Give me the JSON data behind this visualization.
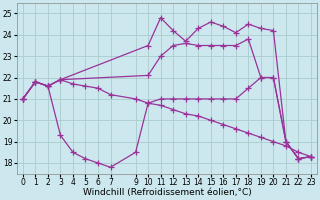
{
  "background_color": "#cce8ee",
  "grid_color": "#aacccc",
  "line_color": "#993399",
  "line_width": 0.9,
  "marker": "+",
  "marker_size": 4,
  "marker_lw": 0.9,
  "xlabel": "Windchill (Refroidissement éolien,°C)",
  "xlabel_fontsize": 6.5,
  "tick_fontsize": 5.5,
  "xlim": [
    -0.5,
    23.5
  ],
  "ylim": [
    17.5,
    25.5
  ],
  "yticks": [
    18,
    19,
    20,
    21,
    22,
    23,
    24,
    25
  ],
  "xticks": [
    0,
    1,
    2,
    3,
    4,
    5,
    6,
    7,
    9,
    10,
    11,
    12,
    13,
    14,
    15,
    16,
    17,
    18,
    19,
    20,
    21,
    22,
    23
  ],
  "series": [
    {
      "x": [
        0,
        1,
        2,
        3,
        10,
        11,
        12,
        13,
        14,
        15,
        16,
        17,
        18,
        19,
        20,
        21,
        22,
        23
      ],
      "y": [
        21.0,
        21.8,
        21.6,
        21.9,
        23.5,
        24.8,
        24.2,
        23.7,
        24.3,
        24.6,
        24.4,
        24.1,
        24.5,
        24.3,
        24.2,
        19.0,
        18.2,
        18.3
      ]
    },
    {
      "x": [
        0,
        1,
        2,
        3,
        10,
        11,
        12,
        13,
        14,
        15,
        16,
        17,
        18,
        19,
        20,
        21,
        22,
        23
      ],
      "y": [
        21.0,
        21.8,
        21.6,
        21.9,
        22.1,
        23.0,
        23.5,
        23.6,
        23.5,
        23.5,
        23.5,
        23.5,
        23.8,
        22.0,
        22.0,
        19.0,
        18.2,
        18.3
      ]
    },
    {
      "x": [
        0,
        1,
        2,
        3,
        4,
        5,
        6,
        7,
        9,
        10,
        11,
        12,
        13,
        14,
        15,
        16,
        17,
        18,
        19,
        20,
        21,
        22,
        23
      ],
      "y": [
        21.0,
        21.8,
        21.6,
        19.3,
        18.5,
        18.2,
        18.0,
        17.8,
        18.5,
        20.8,
        21.0,
        21.0,
        21.0,
        21.0,
        21.0,
        21.0,
        21.0,
        21.5,
        22.0,
        22.0,
        19.0,
        18.2,
        18.3
      ]
    },
    {
      "x": [
        0,
        1,
        2,
        3,
        4,
        5,
        6,
        7,
        9,
        10,
        11,
        12,
        13,
        14,
        15,
        16,
        17,
        18,
        19,
        20,
        21,
        22,
        23
      ],
      "y": [
        21.0,
        21.8,
        21.6,
        21.9,
        21.7,
        21.6,
        21.5,
        21.2,
        21.0,
        20.8,
        20.7,
        20.5,
        20.3,
        20.2,
        20.0,
        19.8,
        19.6,
        19.4,
        19.2,
        19.0,
        18.8,
        18.5,
        18.3
      ]
    }
  ]
}
